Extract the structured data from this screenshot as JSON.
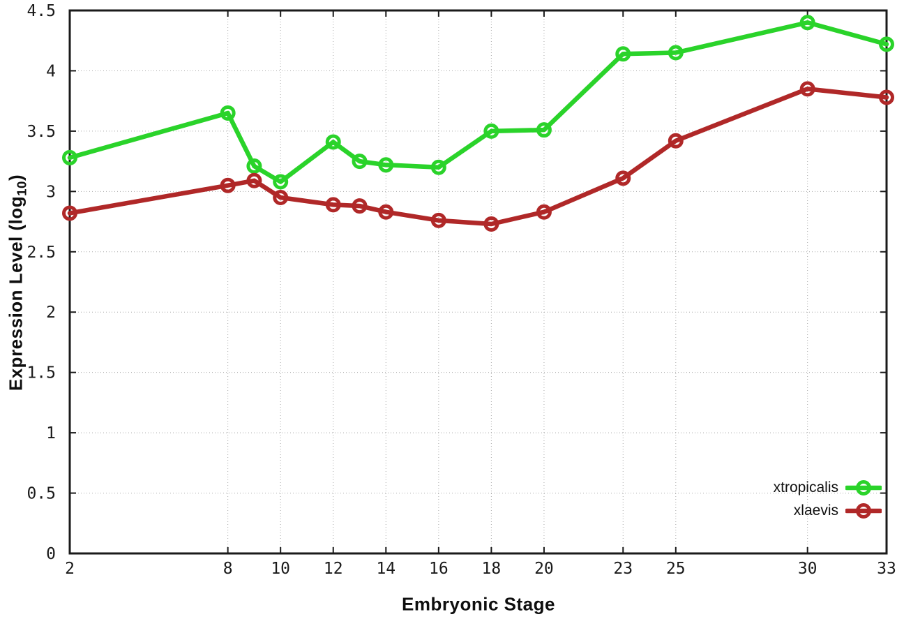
{
  "chart_data": {
    "type": "line",
    "title": "",
    "xlabel": "Embryonic Stage",
    "ylabel": "Expression Level (log10)",
    "ylabel_parts": {
      "pre": "Expression Level (log",
      "sub": "10",
      "post": ")"
    },
    "x": [
      2,
      8,
      9,
      10,
      12,
      13,
      14,
      16,
      18,
      20,
      23,
      25,
      30,
      33
    ],
    "series": [
      {
        "name": "xtropicalis",
        "color": "#2ad32a",
        "values": [
          3.28,
          3.65,
          3.21,
          3.08,
          3.41,
          3.25,
          3.22,
          3.2,
          3.5,
          3.51,
          4.14,
          4.15,
          4.4,
          4.22
        ]
      },
      {
        "name": "xlaevis",
        "color": "#b02828",
        "values": [
          2.82,
          3.05,
          3.09,
          2.95,
          2.89,
          2.88,
          2.83,
          2.76,
          2.73,
          2.83,
          3.11,
          3.42,
          3.85,
          3.78
        ]
      }
    ],
    "xticks": [
      2,
      8,
      10,
      12,
      14,
      16,
      18,
      20,
      23,
      25,
      30,
      33
    ],
    "yticks": [
      0,
      0.5,
      1,
      1.5,
      2,
      2.5,
      3,
      3.5,
      4,
      4.5
    ],
    "xlim": [
      2,
      33
    ],
    "ylim": [
      0,
      4.5
    ],
    "grid": true,
    "legend_position": "inside-bottom-right",
    "axis_color": "#1a1a1a",
    "grid_color": "#a8a8a8",
    "tick_label_color": "#1a1a1a"
  }
}
